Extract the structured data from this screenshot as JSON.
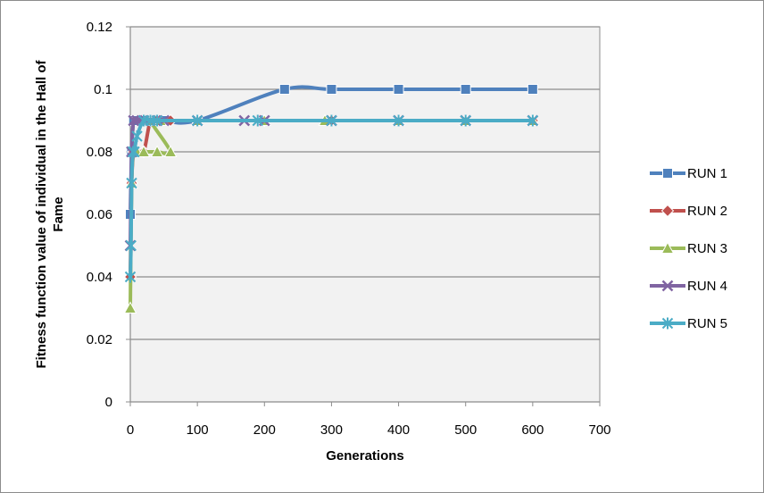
{
  "chart_data": {
    "type": "line",
    "title": "",
    "xlabel": "Generations",
    "ylabel_lines": [
      "Fitness function value of individual in the Hall of",
      "Fame"
    ],
    "xlim": [
      0,
      700
    ],
    "ylim": [
      0,
      0.12
    ],
    "x_ticks": [
      0,
      100,
      200,
      300,
      400,
      500,
      600,
      700
    ],
    "y_ticks": [
      0,
      0.02,
      0.04,
      0.06,
      0.08,
      0.1,
      0.12
    ],
    "x_tick_labels": [
      "0",
      "100",
      "200",
      "300",
      "400",
      "500",
      "600",
      "700"
    ],
    "y_tick_labels": [
      "0",
      "0.02",
      "0.04",
      "0.06",
      "0.08",
      "0.1",
      "0.12"
    ],
    "grid": "horizontal",
    "plot_background": "#f2f2f2",
    "legend_position": "right",
    "series": [
      {
        "name": "RUN 1",
        "color": "#4f81bd",
        "marker": "square",
        "x": [
          0,
          2,
          5,
          10,
          20,
          30,
          40,
          50,
          100,
          230,
          300,
          400,
          500,
          600
        ],
        "y": [
          0.06,
          0.08,
          0.09,
          0.09,
          0.09,
          0.09,
          0.09,
          0.09,
          0.09,
          0.1,
          0.1,
          0.1,
          0.1,
          0.1
        ]
      },
      {
        "name": "RUN 2",
        "color": "#c0504d",
        "marker": "diamond",
        "x": [
          0,
          2,
          5,
          10,
          20,
          30,
          40,
          60,
          100,
          200,
          300,
          400,
          500,
          600
        ],
        "y": [
          0.04,
          0.07,
          0.08,
          0.08,
          0.08,
          0.09,
          0.09,
          0.09,
          0.09,
          0.09,
          0.09,
          0.09,
          0.09,
          0.09
        ]
      },
      {
        "name": "RUN 3",
        "color": "#9bbb59",
        "marker": "triangle",
        "x": [
          0,
          2,
          5,
          10,
          20,
          40,
          60,
          30,
          45,
          100,
          200,
          290,
          400,
          500,
          600
        ],
        "y": [
          0.03,
          0.07,
          0.08,
          0.08,
          0.08,
          0.08,
          0.08,
          0.09,
          0.09,
          0.09,
          0.09,
          0.09,
          0.09,
          0.09,
          0.09
        ]
      },
      {
        "name": "RUN 4",
        "color": "#8064a2",
        "marker": "x",
        "x": [
          0,
          2,
          5,
          10,
          20,
          30,
          40,
          50,
          100,
          170,
          200,
          300,
          400,
          500,
          600
        ],
        "y": [
          0.05,
          0.08,
          0.09,
          0.09,
          0.09,
          0.09,
          0.09,
          0.09,
          0.09,
          0.09,
          0.09,
          0.09,
          0.09,
          0.09,
          0.09
        ]
      },
      {
        "name": "RUN 5",
        "color": "#4bacc6",
        "marker": "star",
        "x": [
          0,
          1,
          2,
          4,
          6,
          10,
          20,
          30,
          40,
          100,
          190,
          300,
          400,
          500,
          600
        ],
        "y": [
          0.04,
          0.05,
          0.07,
          0.08,
          0.08,
          0.085,
          0.09,
          0.09,
          0.09,
          0.09,
          0.09,
          0.09,
          0.09,
          0.09,
          0.09
        ]
      }
    ]
  }
}
